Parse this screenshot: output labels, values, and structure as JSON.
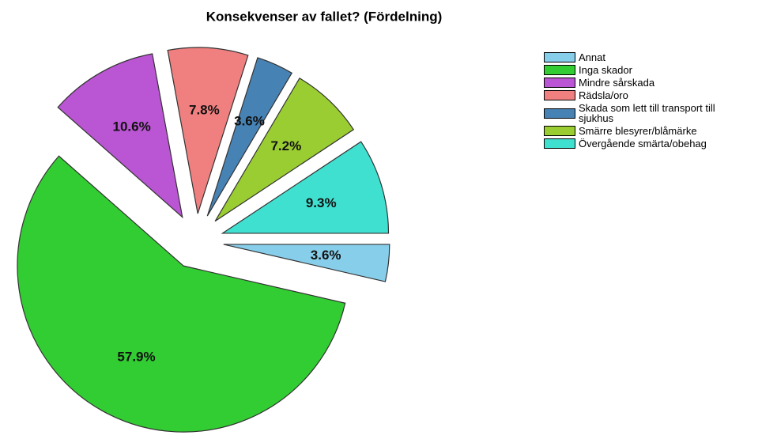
{
  "chart_data": {
    "type": "pie",
    "title": "Konsekvenser av fallet? (Fördelning)",
    "categories": [
      "Annat",
      "Inga skador",
      "Mindre sårskada",
      "Rädsla/oro",
      "Skada som lett till transport till sjukhus",
      "Smärre blesyrer/blåmärke",
      "Övergående smärta/obehag"
    ],
    "values": [
      3.6,
      57.9,
      10.6,
      7.8,
      3.6,
      7.2,
      9.3
    ],
    "value_labels": [
      "3.6%",
      "57.9%",
      "10.6%",
      "7.8%",
      "3.6%",
      "7.2%",
      "9.3%"
    ],
    "colors": [
      "#87ceeb",
      "#32cd32",
      "#ba55d3",
      "#f08080",
      "#4682b4",
      "#9acd32",
      "#40e0d0"
    ],
    "legend": "right"
  }
}
